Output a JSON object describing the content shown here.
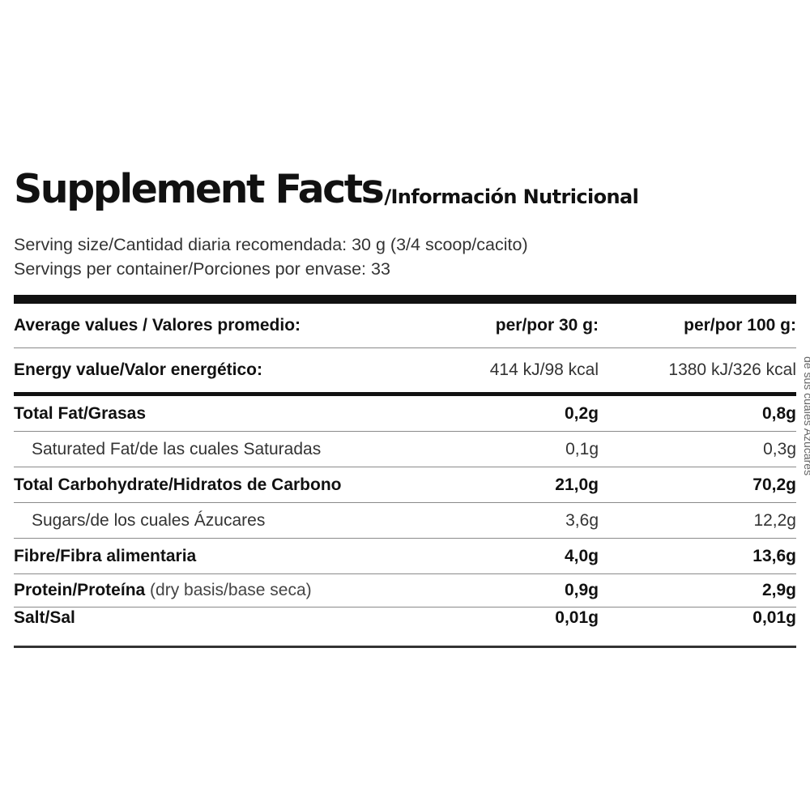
{
  "header": {
    "title": "Supplement Facts",
    "subtitle": "/Información Nutricional"
  },
  "serving": {
    "size": "Serving size/Cantidad diaria recomendada: 30 g (3/4 scoop/cacito)",
    "per_container": "Servings per container/Porciones por envase: 33"
  },
  "table": {
    "header": {
      "label": "Average values / Valores promedio:",
      "col1": "per/por 30 g:",
      "col2": "per/por 100 g:"
    },
    "energy": {
      "label": "Energy value/Valor energético:",
      "v1": "414 kJ/98 kcal",
      "v2": "1380 kJ/326 kcal"
    },
    "rows": [
      {
        "label": "Total Fat/Grasas",
        "v1": "0,2g",
        "v2": "0,8g"
      },
      {
        "label": "Saturated Fat/de las cuales Saturadas",
        "v1": "0,1g",
        "v2": "0,3g"
      },
      {
        "label": "Total Carbohydrate/Hidratos de Carbono",
        "v1": "21,0g",
        "v2": "70,2g"
      },
      {
        "label": "Sugars/de los cuales Ázucares",
        "v1": "3,6g",
        "v2": "12,2g"
      },
      {
        "label": "Fibre/Fibra alimentaria",
        "v1": "4,0g",
        "v2": "13,6g"
      },
      {
        "label": "Protein/Proteína",
        "note": " (dry basis/base seca)",
        "v1": "0,9g",
        "v2": "2,9g"
      },
      {
        "label": "Salt/Sal",
        "v1": "0,01g",
        "v2": "0,01g"
      }
    ]
  },
  "side_text": "de sus cuales Azúcares"
}
